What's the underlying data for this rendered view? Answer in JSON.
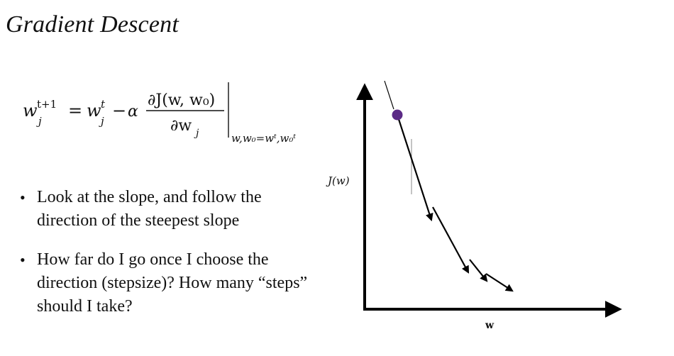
{
  "slide": {
    "title": "Gradient Descent"
  },
  "formula": {
    "lhs_base": "w",
    "lhs_sup": "t+1",
    "lhs_sub": "j",
    "equals": "=",
    "rhs_base": "w",
    "rhs_sup": "t",
    "rhs_sub": "j",
    "minus": "−",
    "alpha": "α",
    "numerator": "∂J(w, w₀)",
    "denominator": "∂w",
    "denominator_sub": "j",
    "eval_point": "w,w₀=wᵗ,w₀ᵗ"
  },
  "bullets": [
    {
      "text": "Look at the slope, and follow the direction of the steepest slope"
    },
    {
      "text": "How far do I go once I choose the direction (stepsize)? How many “steps” should I take?"
    }
  ],
  "diagram": {
    "y_axis_label": "J(w)",
    "x_axis_label": "w",
    "point_color": "#5b2a86",
    "axis_color": "#000000"
  }
}
